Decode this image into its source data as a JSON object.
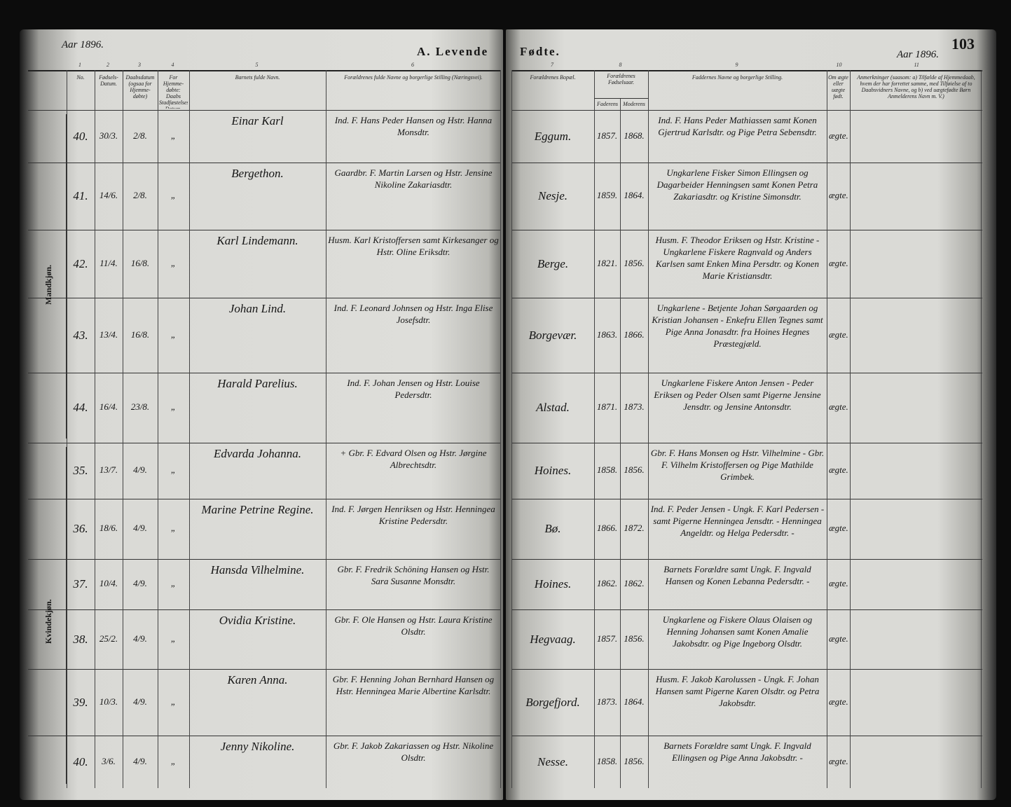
{
  "header": {
    "year_left": "Aar 1896.",
    "title_left": "A. Levende",
    "title_right": "Fødte.",
    "year_right": "Aar 1896.",
    "page_number": "103"
  },
  "column_numbers": [
    "1",
    "2",
    "3",
    "4",
    "5",
    "6",
    "7",
    "8",
    "9",
    "10",
    "11"
  ],
  "columns": [
    "No.",
    "Fødsels-Datum.",
    "Daabsdatum (ogsaa for Hjemme-døbte)",
    "For Hjemme-døbte: Daabs Stadfæstelses Datum.",
    "Barnets fulde Navn.",
    "Forældrenes fulde Navne og borgerlige Stilling (Næringsvei).",
    "Forældrenes Bopæl.",
    {
      "label": "Forældrenes Fødselsaar.",
      "father": "Faderens",
      "mother": "Moderens"
    },
    "Faddernes Navne og borgerlige Stilling.",
    "Om ægte eller uægte født.",
    "Anmerkninger (saasom: a) Tilfælde af Hjemmedaab, hvem der har forrettet samme, med Tilføielse af to Daabsvidners Navne, og b) ved uægtefødte Børn Anmelderens Navn m. V.)"
  ],
  "sections": [
    {
      "label": "Mandkjøn.",
      "rows": [
        {
          "no": "40.",
          "birth_date": "30/3.",
          "baptism_date": "2/8.",
          "confirmation_date": "„",
          "name": "Einar Karl",
          "parents": "Ind. F. Hans Peder Hansen og Hstr. Hanna Monsdtr.",
          "residence": "Eggum.",
          "father_born": "1857.",
          "mother_born": "1868.",
          "sponsors": "Ind. F. Hans Peder Mathiassen samt Konen Gjertrud Karlsdtr. og Pige Petra Sebensdtr.",
          "legitimacy": "ægte."
        },
        {
          "no": "41.",
          "birth_date": "14/6.",
          "baptism_date": "2/8.",
          "confirmation_date": "„",
          "name": "Bergethon.",
          "parents": "Gaardbr. F. Martin Larsen og Hstr. Jensine Nikoline Zakariasdtr.",
          "residence": "Nesje.",
          "father_born": "1859.",
          "mother_born": "1864.",
          "sponsors": "Ungkarlene Fisker Simon Ellingsen og Dagarbeider Henningsen samt Konen Petra Zakariasdtr. og Kristine Simonsdtr.",
          "legitimacy": "ægte."
        },
        {
          "no": "42.",
          "birth_date": "11/4.",
          "baptism_date": "16/8.",
          "confirmation_date": "„",
          "name": "Karl Lindemann.",
          "parents": "Husm. Karl Kristoffersen samt Kirkesanger og Hstr. Oline Eriksdtr.",
          "residence": "Berge.",
          "father_born": "1821.",
          "mother_born": "1856.",
          "sponsors": "Husm. F. Theodor Eriksen og Hstr. Kristine - Ungkarlene Fiskere Ragnvald og Anders Karlsen samt Enken Mina Persdtr. og Konen Marie Kristiansdtr.",
          "legitimacy": "ægte."
        },
        {
          "no": "43.",
          "birth_date": "13/4.",
          "baptism_date": "16/8.",
          "confirmation_date": "„",
          "name": "Johan Lind.",
          "parents": "Ind. F. Leonard Johnsen og Hstr. Inga Elise Josefsdtr.",
          "residence": "Borgevær.",
          "father_born": "1863.",
          "mother_born": "1866.",
          "sponsors": "Ungkarlene - Betjente Johan Sørgaarden og Kristian Johansen - Enkefru Ellen Tegnes samt Pige Anna Jonasdtr. fra Hoines Hegnes Præstegjæld.",
          "legitimacy": "ægte."
        },
        {
          "no": "44.",
          "birth_date": "16/4.",
          "baptism_date": "23/8.",
          "confirmation_date": "„",
          "name": "Harald Parelius.",
          "parents": "Ind. F. Johan Jensen og Hstr. Louise Pedersdtr.",
          "residence": "Alstad.",
          "father_born": "1871.",
          "mother_born": "1873.",
          "sponsors": "Ungkarlene Fiskere Anton Jensen - Peder Eriksen og Peder Olsen samt Pigerne Jensine Jensdtr. og Jensine Antonsdtr.",
          "legitimacy": "ægte."
        }
      ]
    },
    {
      "label": "Kvindekjøn.",
      "rows": [
        {
          "no": "35.",
          "birth_date": "13/7.",
          "baptism_date": "4/9.",
          "confirmation_date": "„",
          "name": "Edvarda Johanna.",
          "parents": "+ Gbr. F. Edvard Olsen og Hstr. Jørgine Albrechtsdtr.",
          "residence": "Hoines.",
          "father_born": "1858.",
          "mother_born": "1856.",
          "sponsors": "Gbr. F. Hans Monsen og Hstr. Vilhelmine - Gbr. F. Vilhelm Kristoffersen og Pige Mathilde Grimbek.",
          "legitimacy": "ægte."
        },
        {
          "no": "36.",
          "birth_date": "18/6.",
          "baptism_date": "4/9.",
          "confirmation_date": "„",
          "name": "Marine Petrine Regine.",
          "parents": "Ind. F. Jørgen Henriksen og Hstr. Henningea Kristine Pedersdtr.",
          "residence": "Bø.",
          "father_born": "1866.",
          "mother_born": "1872.",
          "sponsors": "Ind. F. Peder Jensen - Ungk. F. Karl Pedersen - samt Pigerne Henningea Jensdtr. - Henningea Angeldtr. og Helga Pedersdtr. -",
          "legitimacy": "ægte."
        },
        {
          "no": "37.",
          "birth_date": "10/4.",
          "baptism_date": "4/9.",
          "confirmation_date": "„",
          "name": "Hansda Vilhelmine.",
          "parents": "Gbr. F. Fredrik Schöning Hansen og Hstr. Sara Susanne Monsdtr.",
          "residence": "Hoines.",
          "father_born": "1862.",
          "mother_born": "1862.",
          "sponsors": "Barnets Forældre samt Ungk. F. Ingvald Hansen og Konen Lebanna Pedersdtr. -",
          "legitimacy": "ægte."
        },
        {
          "no": "38.",
          "birth_date": "25/2.",
          "baptism_date": "4/9.",
          "confirmation_date": "„",
          "name": "Ovidia Kristine.",
          "parents": "Gbr. F. Ole Hansen og Hstr. Laura Kristine Olsdtr.",
          "residence": "Hegvaag.",
          "father_born": "1857.",
          "mother_born": "1856.",
          "sponsors": "Ungkarlene og Fiskere Olaus Olaisen og Henning Johansen samt Konen Amalie Jakobsdtr. og Pige Ingeborg Olsdtr.",
          "legitimacy": "ægte."
        },
        {
          "no": "39.",
          "birth_date": "10/3.",
          "baptism_date": "4/9.",
          "confirmation_date": "„",
          "name": "Karen Anna.",
          "parents": "Gbr. F. Henning Johan Bernhard Hansen og Hstr. Henningea Marie Albertine Karlsdtr.",
          "residence": "Borgefjord.",
          "father_born": "1873.",
          "mother_born": "1864.",
          "sponsors": "Husm. F. Jakob Karolussen - Ungk. F. Johan Hansen samt Pigerne Karen Olsdtr. og Petra Jakobsdtr.",
          "legitimacy": "ægte."
        },
        {
          "no": "40.",
          "birth_date": "3/6.",
          "baptism_date": "4/9.",
          "confirmation_date": "„",
          "name": "Jenny Nikoline.",
          "parents": "Gbr. F. Jakob Zakariassen og Hstr. Nikoline Olsdtr.",
          "residence": "Nesse.",
          "father_born": "1858.",
          "mother_born": "1856.",
          "sponsors": "Barnets Forældre samt Ungk. F. Ingvald Ellingsen og Pige Anna Jakobsdtr. -",
          "legitimacy": "ægte."
        }
      ]
    }
  ]
}
